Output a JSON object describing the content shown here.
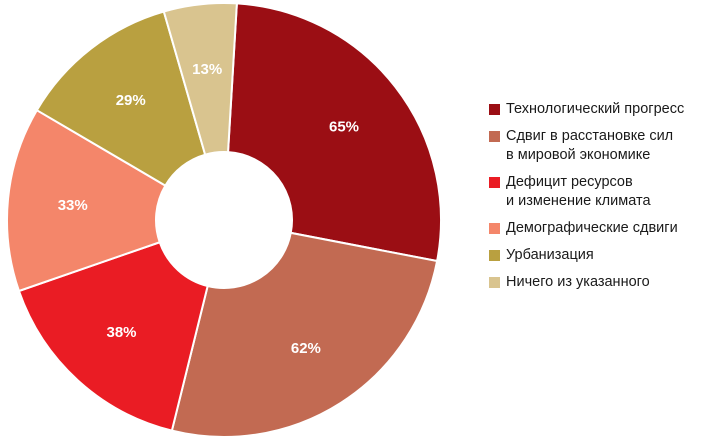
{
  "chart_data": {
    "type": "pie",
    "donut": true,
    "legend_position": "right",
    "slices": [
      {
        "label": "Технологический прогресс",
        "value": 65,
        "value_label": "65%",
        "color": "#9b0e14"
      },
      {
        "label": "Сдвиг в расстановке сил\nв мировой экономике",
        "value": 62,
        "value_label": "62%",
        "color": "#c26a52"
      },
      {
        "label": "Дефицит ресурсов\nи изменение климата",
        "value": 38,
        "value_label": "38%",
        "color": "#ea1c24"
      },
      {
        "label": "Демографические сдвиги",
        "value": 33,
        "value_label": "33%",
        "color": "#f4866a"
      },
      {
        "label": "Урбанизация",
        "value": 29,
        "value_label": "29%",
        "color": "#b9a040"
      },
      {
        "label": "Ничего из указанного",
        "value": 13,
        "value_label": "13%",
        "color": "#d9c48f"
      }
    ]
  }
}
